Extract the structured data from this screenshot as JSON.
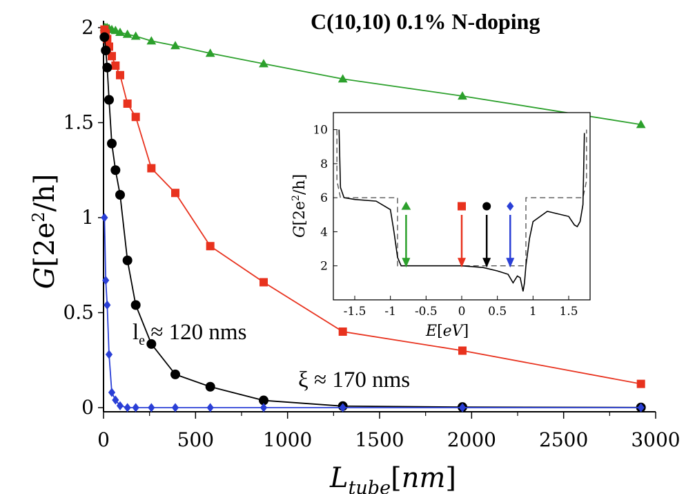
{
  "chart_data": {
    "type": "line",
    "title": "C(10,10)   0.1% N-doping",
    "xlabel": "L",
    "xlabel_sub": "tube",
    "xlabel_unit": "nm",
    "ylabel": "G",
    "ylabel_unit_prefix": "2e",
    "ylabel_unit_suffix": "/h",
    "xlim": [
      0,
      3000
    ],
    "ylim": [
      0,
      2
    ],
    "xticks": [
      "0",
      "500",
      "1000",
      "1500",
      "2000",
      "2500",
      "3000"
    ],
    "yticks": [
      "0",
      "0.5",
      "1",
      "1.5",
      "2"
    ],
    "series": [
      {
        "color": "#2ca02c",
        "marker": "triangle",
        "x": [
          5,
          12,
          20,
          30,
          45,
          65,
          90,
          130,
          175,
          260,
          390,
          580,
          870,
          1300,
          1950,
          2920
        ],
        "y": [
          2.0,
          2.0,
          2.0,
          1.995,
          1.99,
          1.985,
          1.975,
          1.965,
          1.955,
          1.93,
          1.905,
          1.865,
          1.81,
          1.73,
          1.64,
          1.49
        ]
      },
      {
        "color": "#e8321e",
        "marker": "square",
        "x": [
          5,
          12,
          20,
          30,
          45,
          65,
          90,
          130,
          175,
          260,
          390,
          580,
          870,
          1300,
          1950,
          2920
        ],
        "y": [
          1.99,
          1.97,
          1.94,
          1.9,
          1.85,
          1.8,
          1.75,
          1.6,
          1.53,
          1.26,
          1.13,
          0.85,
          0.66,
          0.4,
          0.3,
          0.125
        ]
      },
      {
        "color": "#000000",
        "marker": "circle",
        "x": [
          5,
          12,
          20,
          30,
          45,
          65,
          90,
          130,
          175,
          260,
          390,
          580,
          870,
          1300,
          1950,
          2920
        ],
        "y": [
          1.95,
          1.88,
          1.79,
          1.62,
          1.39,
          1.25,
          1.12,
          0.775,
          0.54,
          0.335,
          0.175,
          0.11,
          0.038,
          0.008,
          0.003,
          0.001
        ]
      },
      {
        "color": "#2a3fd6",
        "marker": "diamond",
        "x": [
          5,
          12,
          20,
          30,
          45,
          65,
          90,
          130,
          175,
          260,
          390,
          580,
          870,
          1300,
          1950,
          2920
        ],
        "y": [
          1.0,
          0.67,
          0.54,
          0.28,
          0.08,
          0.04,
          0.01,
          0.0,
          0.0,
          0.0,
          0.0,
          0.0,
          0.0,
          0.0,
          0.0,
          0.0
        ]
      }
    ],
    "annotations": [
      {
        "base": "l",
        "sub": "e",
        "text": " ≈ 120 nms"
      },
      {
        "text": "ξ ≈ 170 nms"
      }
    ],
    "inset": {
      "type": "line",
      "xlabel": "E",
      "xlabel_unit": "eV",
      "ylabel": "G",
      "ylabel_unit_prefix": "2e",
      "ylabel_unit_suffix": "/h",
      "xlim": [
        -1.8,
        1.8
      ],
      "ylim": [
        0,
        11
      ],
      "xticks": [
        "-1.5",
        "-1",
        "-0.5",
        "0",
        "0.5",
        "1",
        "1.5"
      ],
      "yticks": [
        "2",
        "4",
        "6",
        "8",
        "10"
      ],
      "ideal_series": {
        "style": "dashed",
        "x": [
          -1.75,
          -1.75,
          -1.7,
          -0.9,
          -0.9,
          0.9,
          0.9,
          1.7,
          1.75,
          1.75
        ],
        "y": [
          10,
          7,
          6,
          6,
          2,
          2,
          6,
          6,
          7,
          10
        ]
      },
      "doped_series": {
        "style": "solid",
        "x": [
          -1.72,
          -1.7,
          -1.65,
          -1.5,
          -1.2,
          -1.0,
          -0.95,
          -0.9,
          -0.85,
          -0.5,
          0.0,
          0.3,
          0.5,
          0.65,
          0.72,
          0.78,
          0.82,
          0.86,
          0.88,
          0.9,
          0.95,
          1.0,
          1.2,
          1.5,
          1.58,
          1.62,
          1.66,
          1.7,
          1.72
        ],
        "y": [
          10.0,
          6.6,
          6.0,
          5.9,
          5.8,
          5.3,
          4.0,
          2.5,
          2.0,
          2.0,
          2.0,
          1.9,
          1.7,
          1.5,
          1.0,
          1.4,
          1.3,
          0.5,
          1.0,
          2.0,
          3.6,
          4.6,
          5.2,
          4.9,
          4.4,
          4.3,
          4.6,
          5.6,
          9.8
        ]
      },
      "markers": [
        {
          "color": "#2ca02c",
          "marker": "triangle",
          "x": -0.78
        },
        {
          "color": "#e8321e",
          "marker": "square",
          "x": 0.0
        },
        {
          "color": "#000000",
          "marker": "circle",
          "x": 0.35
        },
        {
          "color": "#2a3fd6",
          "marker": "diamond",
          "x": 0.68
        }
      ]
    }
  }
}
